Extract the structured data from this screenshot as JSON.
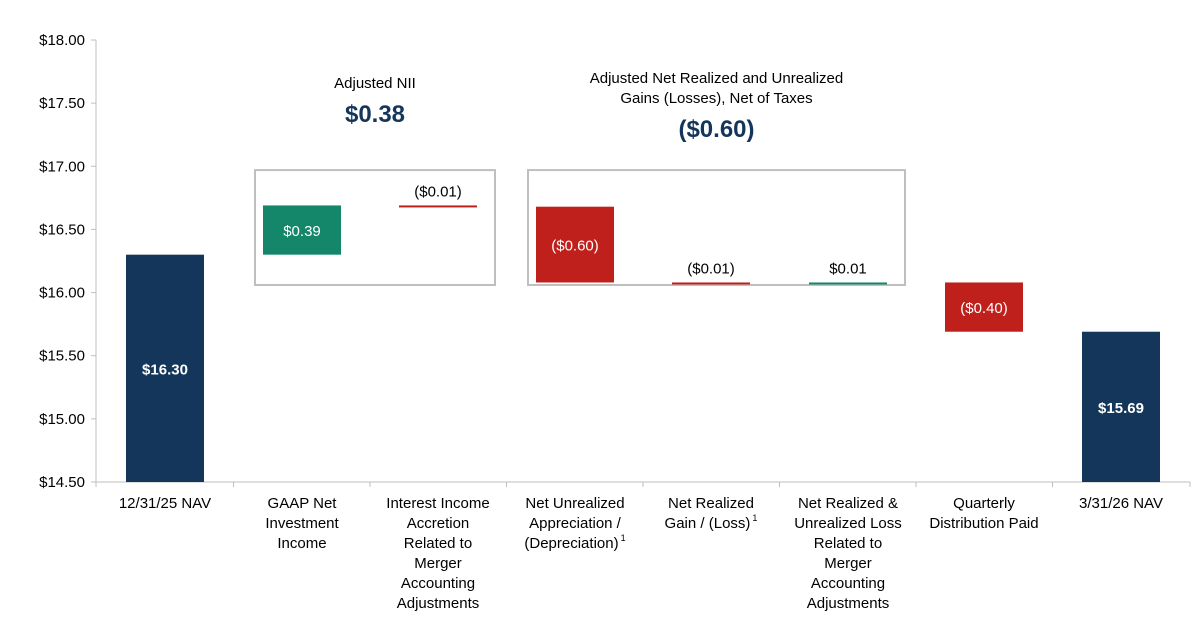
{
  "chart_data": {
    "type": "waterfall",
    "ylim": [
      14.5,
      18.0
    ],
    "ytick_values": [
      14.5,
      15.0,
      15.5,
      16.0,
      16.5,
      17.0,
      17.5,
      18.0
    ],
    "ytick_labels": [
      "$14.50",
      "$15.00",
      "$15.50",
      "$16.00",
      "$16.50",
      "$17.00",
      "$17.50",
      "$18.00"
    ],
    "categories": [
      [
        "12/31/25 NAV"
      ],
      [
        "GAAP Net",
        "Investment",
        "Income"
      ],
      [
        "Interest Income",
        "Accretion",
        "Related to",
        "Merger",
        "Accounting",
        "Adjustments"
      ],
      [
        "Net Unrealized",
        "Appreciation /",
        "(Depreciation)"
      ],
      [
        "Net Realized",
        "Gain / (Loss)"
      ],
      [
        "Net Realized &",
        "Unrealized Loss",
        "Related to",
        "Merger",
        "Accounting",
        "Adjustments"
      ],
      [
        "Quarterly",
        "Distribution Paid"
      ],
      [
        "3/31/26 NAV"
      ]
    ],
    "footnote_marks": [
      "",
      "",
      "",
      "1",
      "1",
      "",
      "",
      ""
    ],
    "bars": [
      {
        "kind": "total",
        "start": 14.5,
        "end": 16.3,
        "label": "$16.30"
      },
      {
        "kind": "delta",
        "start": 16.3,
        "end": 16.69,
        "label": "$0.39"
      },
      {
        "kind": "delta",
        "start": 16.69,
        "end": 16.68,
        "label": "($0.01)"
      },
      {
        "kind": "delta",
        "start": 16.68,
        "end": 16.08,
        "label": "($0.60)"
      },
      {
        "kind": "delta",
        "start": 16.08,
        "end": 16.07,
        "label": "($0.01)"
      },
      {
        "kind": "delta",
        "start": 16.07,
        "end": 16.08,
        "label": "$0.01"
      },
      {
        "kind": "delta",
        "start": 16.08,
        "end": 15.69,
        "label": "($0.40)"
      },
      {
        "kind": "total",
        "start": 14.5,
        "end": 15.69,
        "label": "$15.69"
      }
    ],
    "groups": [
      {
        "title": [
          "Adjusted NII"
        ],
        "value": "$0.38",
        "from_category": 1,
        "to_category": 2,
        "top": 16.97,
        "bottom": 16.06
      },
      {
        "title": [
          "Adjusted Net Realized and Unrealized",
          "Gains (Losses), Net of Taxes"
        ],
        "value": "($0.60)",
        "from_category": 3,
        "to_category": 5,
        "top": 16.97,
        "bottom": 16.06
      }
    ],
    "colors": {
      "total": "#14365a",
      "increase": "#14876b",
      "decrease": "#c0201c",
      "group_value": "#14365a",
      "box": "#bfbfbf",
      "axis": "#bfbfbf"
    }
  }
}
